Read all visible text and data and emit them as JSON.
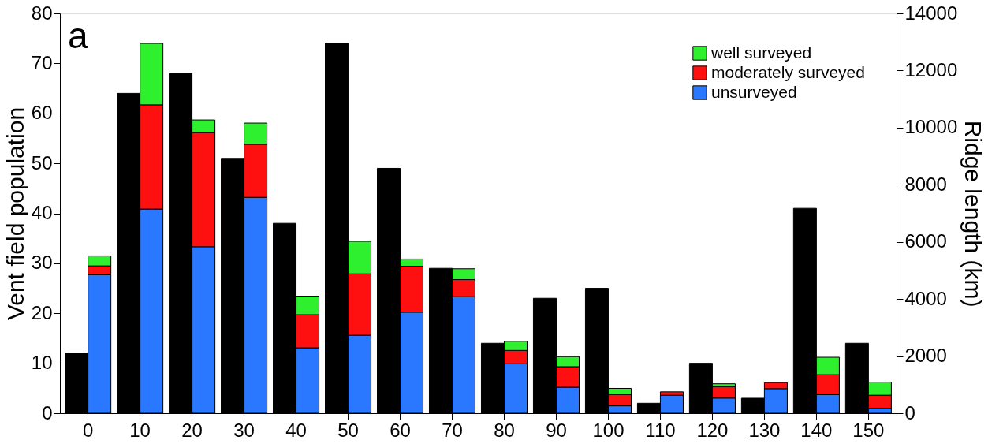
{
  "chart_data": {
    "type": "bar",
    "stacked": true,
    "ylabel": "Vent field population",
    "y2label": "Ridge length (km)",
    "annotations": [
      "a"
    ],
    "categories": [
      "0",
      "10",
      "20",
      "30",
      "40",
      "50",
      "60",
      "70",
      "80",
      "90",
      "100",
      "110",
      "120",
      "130",
      "140",
      "150"
    ],
    "series": [
      {
        "color": "#000000",
        "values": [
          12,
          64,
          68,
          51,
          38,
          74,
          49,
          29,
          14,
          23,
          25,
          2,
          10,
          3,
          41,
          14
        ]
      },
      {
        "name": "unsurveyed",
        "color": "#2a78ff",
        "axis": "y2",
        "values": [
          4850,
          7150,
          5830,
          7560,
          2290,
          2730,
          3540,
          4080,
          1730,
          910,
          260,
          630,
          530,
          860,
          650,
          180
        ]
      },
      {
        "name": "moderately surveyed",
        "color": "#ff1010",
        "axis": "y2",
        "values": [
          310,
          3650,
          4000,
          1860,
          1160,
          2150,
          1610,
          600,
          470,
          720,
          400,
          120,
          400,
          210,
          700,
          450
        ]
      },
      {
        "name": "well surveyed",
        "color": "#2ef02e",
        "axis": "y2",
        "values": [
          350,
          2150,
          440,
          740,
          650,
          1140,
          250,
          380,
          320,
          350,
          210,
          null,
          100,
          null,
          610,
          460
        ]
      }
    ],
    "ylim": [
      0,
      80
    ],
    "yticks": [
      0,
      10,
      20,
      30,
      40,
      50,
      60,
      70,
      80
    ],
    "y2lim": [
      0,
      14000
    ],
    "y2ticks": [
      0,
      2000,
      4000,
      6000,
      8000,
      10000,
      12000,
      14000
    ],
    "legend": "top right",
    "grid": false
  }
}
